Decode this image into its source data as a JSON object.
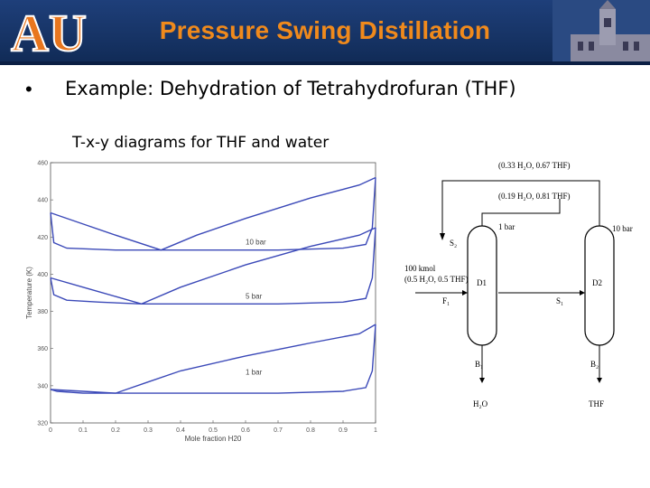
{
  "slide": {
    "title": "Pressure Swing Distillation",
    "bullet_symbol": "•",
    "bullet_text": "Example: Dehydration of Tetrahydrofuran (THF)",
    "subtitle": "T-x-y diagrams for THF and water"
  },
  "colors": {
    "header": "#173466",
    "title": "#f08a1c",
    "logo_orange": "#e8761e",
    "curve": "#3b49b8"
  },
  "chart_data": {
    "type": "line",
    "title": "",
    "xlabel": "Mole fraction H20",
    "ylabel": "Temperature (K)",
    "xlim": [
      0,
      1
    ],
    "ylim": [
      320,
      460
    ],
    "x_ticks": [
      "0",
      "0.1",
      "0.2",
      "0.3",
      "0.4",
      "0.5",
      "0.6",
      "0.7",
      "0.8",
      "0.9",
      "1"
    ],
    "y_ticks": [
      "320",
      "340",
      "360",
      "380",
      "400",
      "420",
      "440",
      "460"
    ],
    "grid": false,
    "annotations": [
      "10 bar",
      "5 bar",
      "1 bar"
    ],
    "series": [
      {
        "pressure": "10 bar",
        "curve": "dew",
        "x": [
          0,
          0.1,
          0.2,
          0.34,
          0.45,
          0.6,
          0.8,
          0.95,
          1
        ],
        "y": [
          433,
          427,
          421,
          413,
          421,
          430,
          441,
          448,
          452
        ]
      },
      {
        "pressure": "10 bar",
        "curve": "bubble",
        "x": [
          0,
          0.01,
          0.05,
          0.2,
          0.34,
          0.5,
          0.7,
          0.9,
          0.97,
          0.99,
          1
        ],
        "y": [
          433,
          417,
          414,
          413,
          413,
          413,
          413,
          414,
          416,
          425,
          452
        ]
      },
      {
        "pressure": "5 bar",
        "curve": "dew",
        "x": [
          0,
          0.1,
          0.2,
          0.28,
          0.4,
          0.6,
          0.8,
          0.95,
          1
        ],
        "y": [
          398,
          393,
          388,
          384,
          393,
          405,
          415,
          421,
          425
        ]
      },
      {
        "pressure": "5 bar",
        "curve": "bubble",
        "x": [
          0,
          0.01,
          0.05,
          0.15,
          0.28,
          0.5,
          0.7,
          0.9,
          0.97,
          0.99,
          1
        ],
        "y": [
          398,
          389,
          386,
          385,
          384,
          384,
          384,
          385,
          387,
          398,
          425
        ]
      },
      {
        "pressure": "1 bar",
        "curve": "dew",
        "x": [
          0,
          0.1,
          0.2,
          0.3,
          0.4,
          0.6,
          0.8,
          0.95,
          1
        ],
        "y": [
          338,
          337,
          336,
          342,
          348,
          356,
          363,
          368,
          373
        ]
      },
      {
        "pressure": "1 bar",
        "curve": "bubble",
        "x": [
          0,
          0.02,
          0.1,
          0.2,
          0.3,
          0.5,
          0.7,
          0.9,
          0.97,
          0.99,
          1
        ],
        "y": [
          338,
          337,
          336,
          336,
          336,
          336,
          336,
          337,
          339,
          348,
          373
        ]
      }
    ]
  },
  "diagram": {
    "top_stream": "(0.33 H₂O, 0.67 THF)",
    "mid_stream": "(0.19 H₂O, 0.81 THF)",
    "p1": "1 bar",
    "p2": "10 bar",
    "feed_line1": "100 kmol",
    "feed_line2": "(0.5 H₂O, 0.5 THF)",
    "S2": "S₂",
    "F1": "F₁",
    "S1": "S₁",
    "D1": "D1",
    "D2": "D2",
    "B1": "B₁",
    "B2": "B₂",
    "prod1": "H₂O",
    "prod2": "THF"
  }
}
